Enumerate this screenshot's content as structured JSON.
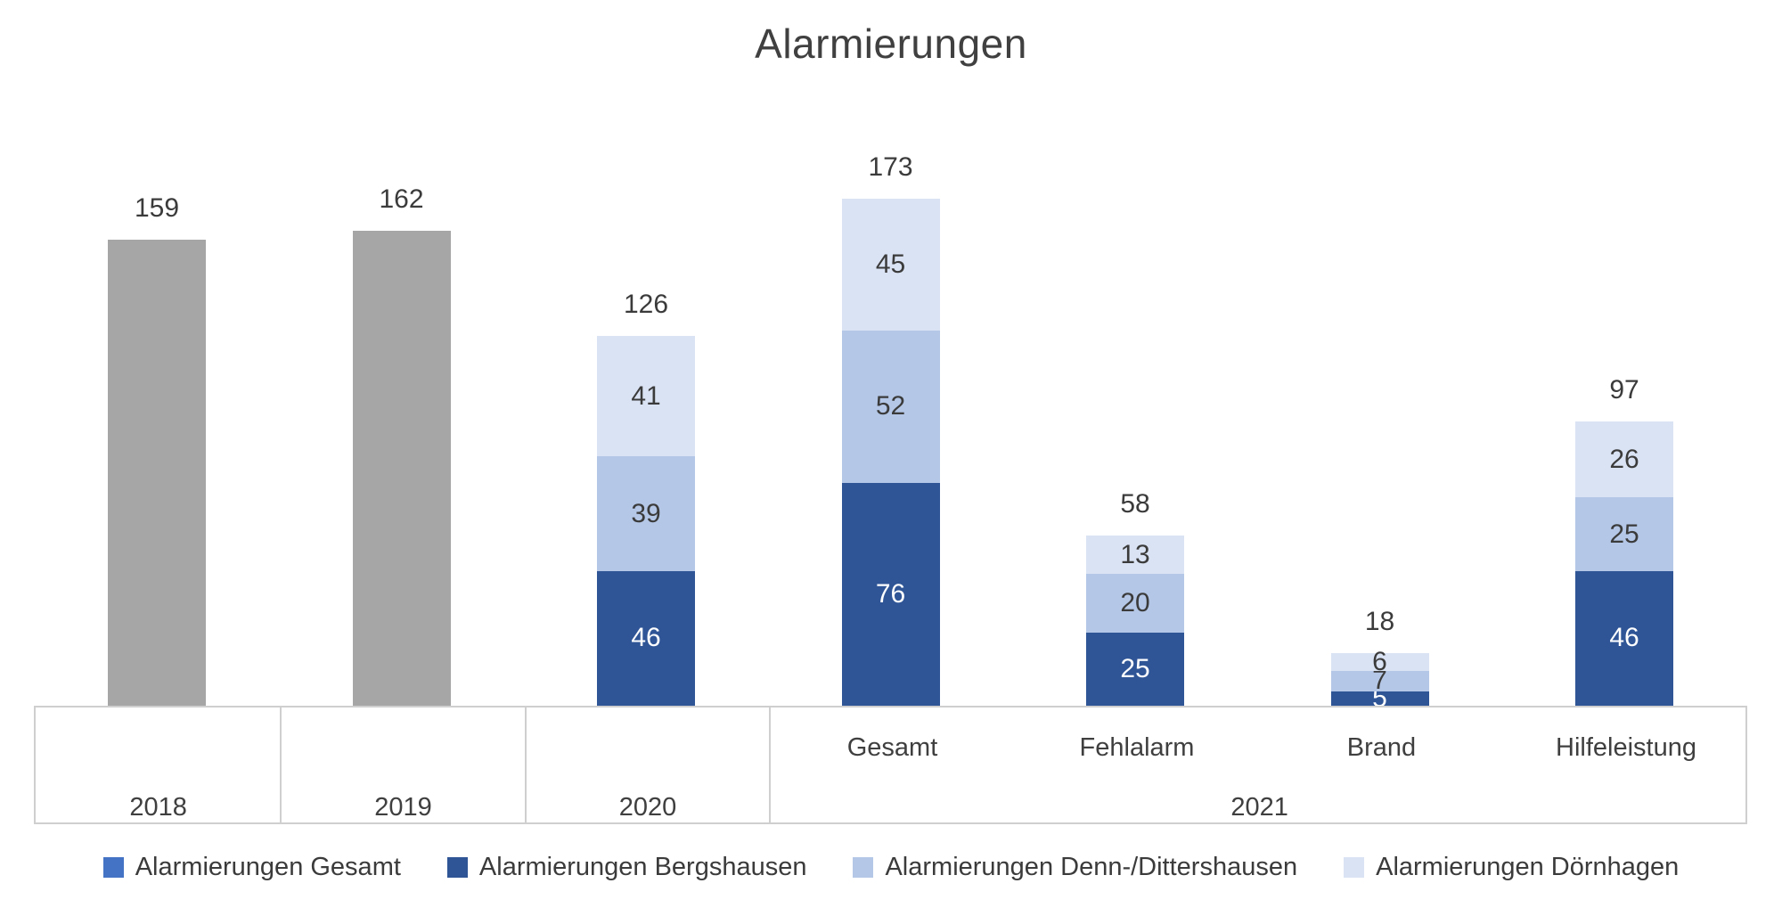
{
  "title": "Alarmierungen",
  "colors": {
    "series_gesamt": "#4472C4",
    "series_bergshausen": "#2F5597",
    "series_denn_dittershausen": "#B4C7E7",
    "series_doernhagen": "#DAE3F3",
    "bar_2018_2019_gray": "#A6A6A6",
    "axis_line": "#CFCFCF",
    "label_dark": "#3B3B3B",
    "label_light": "#FFFFFF",
    "title_text": "#404040"
  },
  "legend": {
    "items": [
      {
        "label": "Alarmierungen Gesamt",
        "color": "#4472C4"
      },
      {
        "label": "Alarmierungen Bergshausen",
        "color": "#2F5597"
      },
      {
        "label": "Alarmierungen Denn-/Dittershausen",
        "color": "#B4C7E7"
      },
      {
        "label": "Alarmierungen Dörnhagen",
        "color": "#DAE3F3"
      }
    ]
  },
  "chart_data": {
    "type": "bar",
    "subtype": "stacked-columns",
    "title": "Alarmierungen",
    "y_axis_visible": false,
    "grid": false,
    "legend_position": "bottom",
    "series_names": [
      "Alarmierungen Gesamt",
      "Alarmierungen Bergshausen",
      "Alarmierungen Denn-/Dittershausen",
      "Alarmierungen Dörnhagen"
    ],
    "x_axis": {
      "groups": [
        {
          "label": "2018",
          "categories": []
        },
        {
          "label": "2019",
          "categories": []
        },
        {
          "label": "2020",
          "categories": []
        },
        {
          "label": "2021",
          "categories": [
            "Gesamt",
            "Fehlalarm",
            "Brand",
            "Hilfeleistung"
          ]
        }
      ]
    },
    "bars": [
      {
        "group": "2018",
        "category": "",
        "total": 159,
        "total_label": "159",
        "segments": [
          {
            "series": "Alarmierungen Gesamt",
            "value": 159,
            "color": "#A6A6A6",
            "show_value": false
          }
        ]
      },
      {
        "group": "2019",
        "category": "",
        "total": 162,
        "total_label": "162",
        "segments": [
          {
            "series": "Alarmierungen Gesamt",
            "value": 162,
            "color": "#A6A6A6",
            "show_value": false
          }
        ]
      },
      {
        "group": "2020",
        "category": "",
        "total": 126,
        "total_label": "126",
        "segments": [
          {
            "series": "Alarmierungen Bergshausen",
            "value": 46,
            "color": "#2F5597",
            "text_color": "#FFFFFF"
          },
          {
            "series": "Alarmierungen Denn-/Dittershausen",
            "value": 39,
            "color": "#B4C7E7",
            "text_color": "#3B3B3B"
          },
          {
            "series": "Alarmierungen Dörnhagen",
            "value": 41,
            "color": "#DAE3F3",
            "text_color": "#3B3B3B"
          }
        ]
      },
      {
        "group": "2021",
        "category": "Gesamt",
        "total": 173,
        "total_label": "173",
        "segments": [
          {
            "series": "Alarmierungen Bergshausen",
            "value": 76,
            "color": "#2F5597",
            "text_color": "#FFFFFF"
          },
          {
            "series": "Alarmierungen Denn-/Dittershausen",
            "value": 52,
            "color": "#B4C7E7",
            "text_color": "#3B3B3B"
          },
          {
            "series": "Alarmierungen Dörnhagen",
            "value": 45,
            "color": "#DAE3F3",
            "text_color": "#3B3B3B"
          }
        ]
      },
      {
        "group": "2021",
        "category": "Fehlalarm",
        "total": 58,
        "total_label": "58",
        "segments": [
          {
            "series": "Alarmierungen Bergshausen",
            "value": 25,
            "color": "#2F5597",
            "text_color": "#FFFFFF"
          },
          {
            "series": "Alarmierungen Denn-/Dittershausen",
            "value": 20,
            "color": "#B4C7E7",
            "text_color": "#3B3B3B"
          },
          {
            "series": "Alarmierungen Dörnhagen",
            "value": 13,
            "color": "#DAE3F3",
            "text_color": "#3B3B3B"
          }
        ]
      },
      {
        "group": "2021",
        "category": "Brand",
        "total": 18,
        "total_label": "18",
        "segments": [
          {
            "series": "Alarmierungen Bergshausen",
            "value": 5,
            "color": "#2F5597",
            "text_color": "#FFFFFF"
          },
          {
            "series": "Alarmierungen Denn-/Dittershausen",
            "value": 7,
            "color": "#B4C7E7",
            "text_color": "#3B3B3B"
          },
          {
            "series": "Alarmierungen Dörnhagen",
            "value": 6,
            "color": "#DAE3F3",
            "text_color": "#3B3B3B"
          }
        ]
      },
      {
        "group": "2021",
        "category": "Hilfeleistung",
        "total": 97,
        "total_label": "97",
        "segments": [
          {
            "series": "Alarmierungen Bergshausen",
            "value": 46,
            "color": "#2F5597",
            "text_color": "#FFFFFF"
          },
          {
            "series": "Alarmierungen Denn-/Dittershausen",
            "value": 25,
            "color": "#B4C7E7",
            "text_color": "#3B3B3B"
          },
          {
            "series": "Alarmierungen Dörnhagen",
            "value": 26,
            "color": "#DAE3F3",
            "text_color": "#3B3B3B"
          }
        ]
      }
    ]
  }
}
